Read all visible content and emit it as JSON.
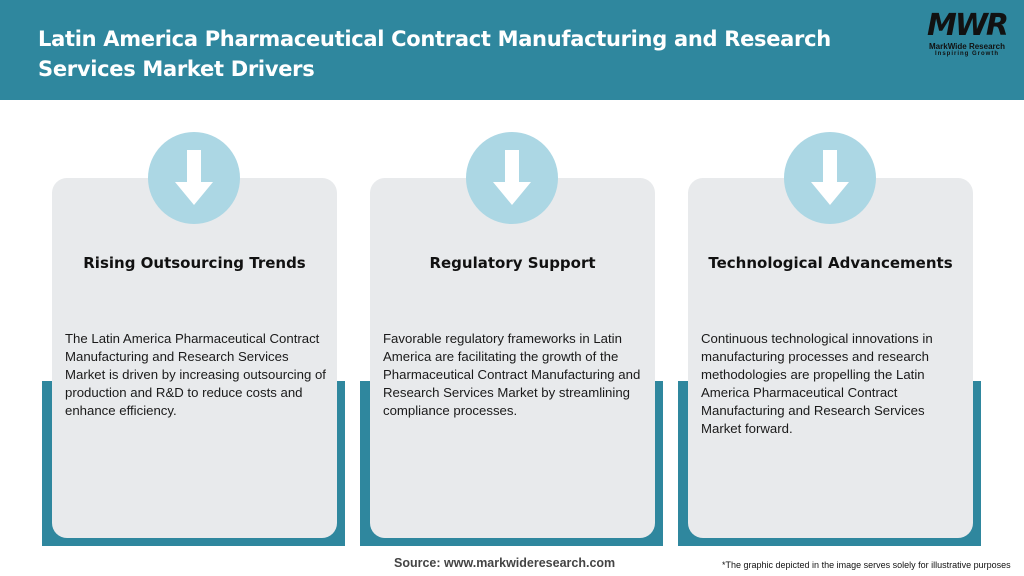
{
  "header": {
    "title": "Latin America Pharmaceutical Contract Manufacturing and Research Services Market Drivers"
  },
  "logo": {
    "mark": "MWR",
    "name": "MarkWide Research",
    "tagline": "Inspiring Growth"
  },
  "cards": [
    {
      "icon": "arrow-down-icon",
      "title": "Rising Outsourcing Trends",
      "text": "The Latin America Pharmaceutical Contract Manufacturing and Research Services Market is driven by increasing outsourcing of production and R&D to reduce costs and enhance efficiency."
    },
    {
      "icon": "arrow-down-icon",
      "title": "Regulatory Support",
      "text": "Favorable regulatory frameworks in Latin America are facilitating the growth of the Pharmaceutical Contract Manufacturing and Research Services Market by streamlining compliance processes."
    },
    {
      "icon": "arrow-down-icon",
      "title": "Technological Advancements",
      "text": "Continuous technological innovations in manufacturing processes and research methodologies are propelling the Latin America Pharmaceutical Contract Manufacturing and Research Services Market forward."
    }
  ],
  "footer": {
    "source": "Source: www.markwideresearch.com",
    "note": "*The graphic depicted in the image serves solely for illustrative purposes"
  },
  "colors": {
    "primary": "#2f879e",
    "circle": "#acd7e4",
    "card": "#e8eaec"
  }
}
